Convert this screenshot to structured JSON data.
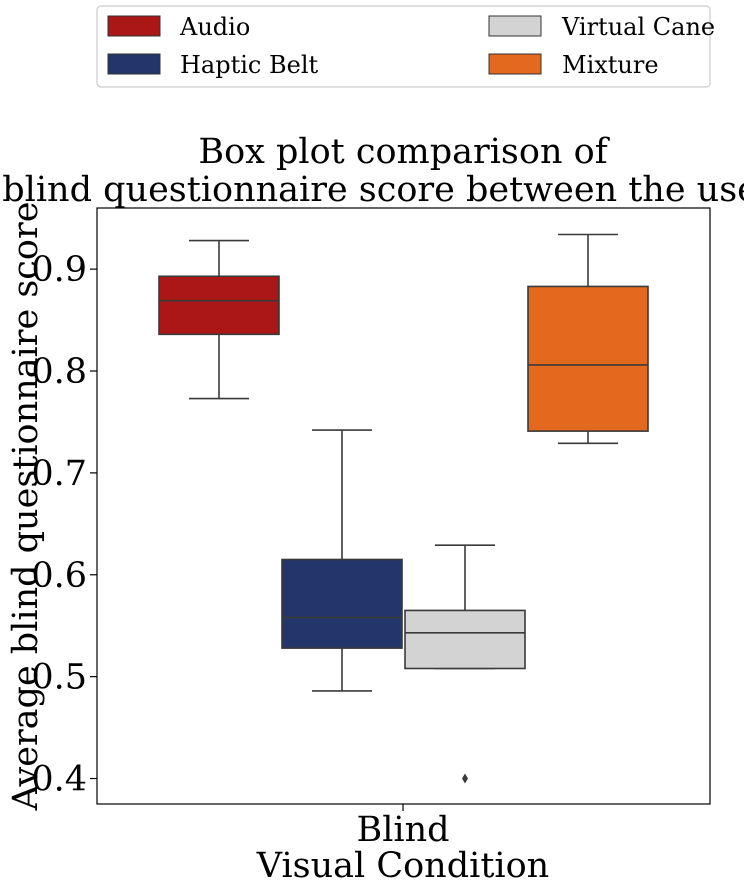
{
  "chart_data": {
    "type": "box",
    "title_lines": [
      "Box plot comparison of",
      "blind questionnaire score between the users."
    ],
    "xlabel": "Visual Condition",
    "ylabel": "Average blind questionnaire score",
    "categories": [
      "Blind"
    ],
    "ylim": [
      0.375,
      0.96
    ],
    "yticks": [
      "0.4",
      "0.5",
      "0.6",
      "0.7",
      "0.8",
      "0.9"
    ],
    "ytick_values": [
      0.4,
      0.5,
      0.6,
      0.7,
      0.8,
      0.9
    ],
    "legend_position": "top, above plot, 2 columns",
    "grid": false,
    "series": [
      {
        "name": "Audio",
        "color": "#ab1616",
        "whisker_low": 0.773,
        "q1": 0.836,
        "median": 0.869,
        "q3": 0.893,
        "whisker_high": 0.928,
        "outliers": []
      },
      {
        "name": "Haptic Belt",
        "color": "#23366b",
        "whisker_low": 0.486,
        "q1": 0.528,
        "median": 0.558,
        "q3": 0.615,
        "whisker_high": 0.742,
        "outliers": []
      },
      {
        "name": "Virtual Cane",
        "color": "#d3d3d3",
        "whisker_low": 0.508,
        "q1": 0.508,
        "median": 0.543,
        "q3": 0.565,
        "whisker_high": 0.629,
        "outliers": [
          0.4
        ]
      },
      {
        "name": "Mixture",
        "color": "#e3691f",
        "whisker_low": 0.729,
        "q1": 0.741,
        "median": 0.806,
        "q3": 0.883,
        "whisker_high": 0.934,
        "outliers": []
      }
    ]
  }
}
